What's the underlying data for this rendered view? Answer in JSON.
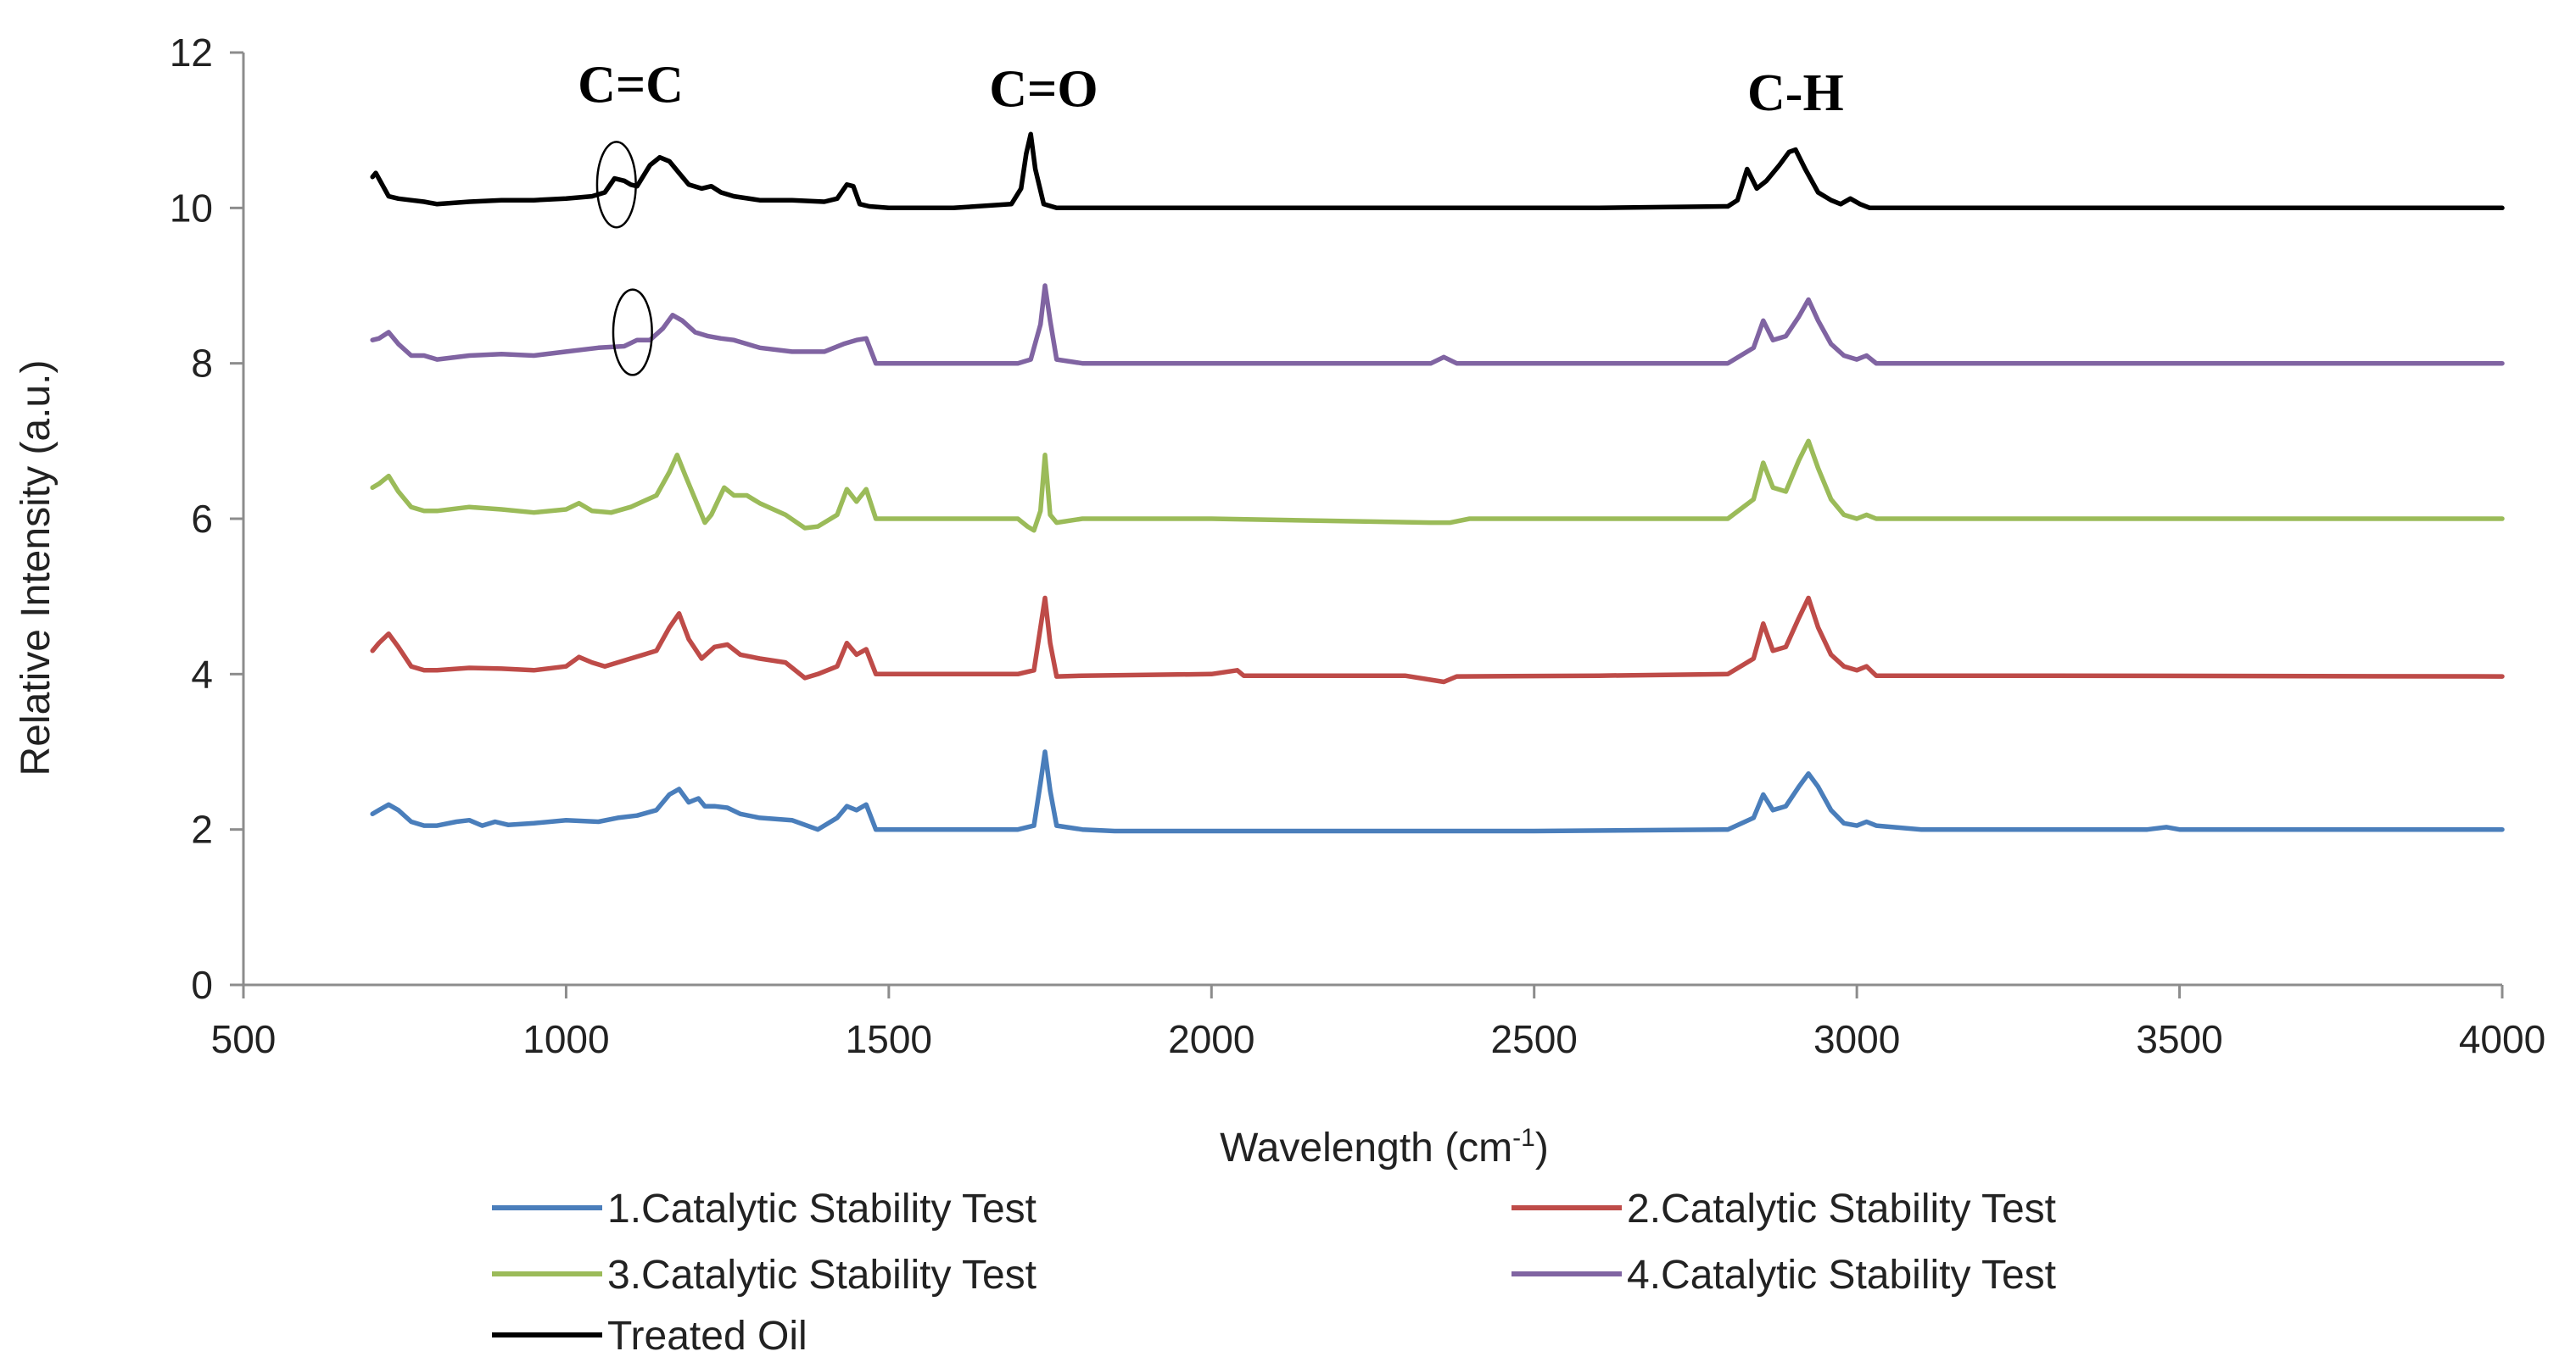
{
  "chart_data": {
    "type": "line",
    "title": "",
    "xlabel": "Wavelength (cm",
    "xlabel_superscript": "-1",
    "xlabel_suffix": ")",
    "ylabel": "Relative Intensity (a.u.)",
    "xlim": [
      500,
      4000
    ],
    "ylim": [
      0,
      12
    ],
    "x_ticks": [
      500,
      1000,
      1500,
      2000,
      2500,
      3000,
      3500,
      4000
    ],
    "y_ticks": [
      0,
      2,
      4,
      6,
      8,
      10,
      12
    ],
    "grid": false,
    "legend_position": "bottom",
    "annotations": [
      {
        "text": "C=C",
        "x": 1100,
        "y": 11.6
      },
      {
        "text": "C=O",
        "x": 1740,
        "y": 11.55
      },
      {
        "text": "C-H",
        "x": 2905,
        "y": 11.5
      }
    ],
    "circles": [
      {
        "x": 1078,
        "y": 10.3,
        "rx": 30,
        "ry": 0.55
      },
      {
        "x": 1103,
        "y": 8.4,
        "rx": 30,
        "ry": 0.55
      }
    ],
    "series": [
      {
        "name": "1.Catalytic Stability Test",
        "color": "#4a7ebb",
        "x": [
          700,
          710,
          725,
          740,
          760,
          780,
          800,
          830,
          850,
          870,
          890,
          910,
          950,
          1000,
          1050,
          1080,
          1110,
          1140,
          1160,
          1175,
          1190,
          1205,
          1215,
          1230,
          1250,
          1270,
          1300,
          1350,
          1390,
          1420,
          1435,
          1450,
          1465,
          1480,
          1500,
          1600,
          1700,
          1725,
          1735,
          1742,
          1750,
          1760,
          1800,
          1850,
          2000,
          2500,
          2800,
          2840,
          2855,
          2870,
          2890,
          2910,
          2925,
          2940,
          2960,
          2980,
          3000,
          3015,
          3030,
          3100,
          3450,
          3480,
          3500,
          4000
        ],
        "y": [
          2.2,
          2.25,
          2.32,
          2.25,
          2.1,
          2.05,
          2.05,
          2.1,
          2.12,
          2.05,
          2.1,
          2.06,
          2.08,
          2.12,
          2.1,
          2.15,
          2.18,
          2.25,
          2.45,
          2.52,
          2.35,
          2.4,
          2.3,
          2.3,
          2.28,
          2.2,
          2.15,
          2.12,
          2.0,
          2.15,
          2.3,
          2.25,
          2.32,
          2.0,
          2.0,
          2.0,
          2.0,
          2.05,
          2.6,
          3.0,
          2.5,
          2.05,
          2.0,
          1.98,
          1.98,
          1.98,
          2.0,
          2.15,
          2.45,
          2.25,
          2.3,
          2.55,
          2.72,
          2.55,
          2.25,
          2.08,
          2.05,
          2.1,
          2.05,
          2.0,
          2.0,
          2.03,
          2.0,
          2.0
        ]
      },
      {
        "name": "2.Catalytic Stability Test",
        "color": "#be4b48",
        "x": [
          700,
          710,
          725,
          740,
          760,
          780,
          800,
          850,
          900,
          950,
          1000,
          1020,
          1040,
          1060,
          1100,
          1140,
          1160,
          1175,
          1190,
          1210,
          1230,
          1250,
          1270,
          1300,
          1340,
          1370,
          1390,
          1420,
          1435,
          1450,
          1465,
          1480,
          1500,
          1600,
          1700,
          1725,
          1735,
          1742,
          1750,
          1760,
          1800,
          2000,
          2040,
          2050,
          2300,
          2360,
          2380,
          2600,
          2800,
          2840,
          2855,
          2870,
          2890,
          2910,
          2925,
          2940,
          2960,
          2980,
          3000,
          3015,
          3030,
          3300,
          4000
        ],
        "y": [
          4.3,
          4.4,
          4.52,
          4.35,
          4.1,
          4.05,
          4.05,
          4.08,
          4.07,
          4.05,
          4.1,
          4.22,
          4.15,
          4.1,
          4.2,
          4.3,
          4.6,
          4.78,
          4.45,
          4.2,
          4.35,
          4.38,
          4.25,
          4.2,
          4.15,
          3.95,
          4.0,
          4.1,
          4.4,
          4.25,
          4.32,
          4.0,
          4.0,
          4.0,
          4.0,
          4.05,
          4.6,
          4.98,
          4.4,
          3.97,
          3.98,
          4.0,
          4.05,
          3.98,
          3.98,
          3.9,
          3.97,
          3.98,
          4.0,
          4.2,
          4.65,
          4.3,
          4.35,
          4.72,
          4.98,
          4.6,
          4.25,
          4.1,
          4.05,
          4.1,
          3.98,
          3.98,
          3.97
        ]
      },
      {
        "name": "3.Catalytic Stability Test",
        "color": "#9bbb59",
        "x": [
          700,
          710,
          725,
          740,
          760,
          780,
          800,
          850,
          900,
          950,
          1000,
          1020,
          1040,
          1070,
          1100,
          1140,
          1160,
          1172,
          1185,
          1200,
          1215,
          1225,
          1245,
          1260,
          1280,
          1300,
          1340,
          1370,
          1390,
          1420,
          1435,
          1450,
          1465,
          1480,
          1500,
          1600,
          1700,
          1715,
          1725,
          1735,
          1742,
          1750,
          1760,
          1800,
          2000,
          2340,
          2370,
          2400,
          2800,
          2840,
          2855,
          2870,
          2890,
          2910,
          2925,
          2940,
          2960,
          2980,
          3000,
          3015,
          3030,
          4000
        ],
        "y": [
          6.4,
          6.45,
          6.55,
          6.35,
          6.15,
          6.1,
          6.1,
          6.15,
          6.12,
          6.08,
          6.12,
          6.2,
          6.1,
          6.08,
          6.15,
          6.3,
          6.6,
          6.82,
          6.55,
          6.25,
          5.95,
          6.05,
          6.4,
          6.3,
          6.3,
          6.2,
          6.05,
          5.88,
          5.9,
          6.05,
          6.38,
          6.22,
          6.38,
          6.0,
          6.0,
          6.0,
          6.0,
          5.9,
          5.85,
          6.1,
          6.82,
          6.05,
          5.95,
          6.0,
          6.0,
          5.95,
          5.95,
          6.0,
          6.0,
          6.25,
          6.72,
          6.4,
          6.35,
          6.75,
          7.0,
          6.65,
          6.25,
          6.05,
          6.0,
          6.05,
          6.0,
          6.0
        ]
      },
      {
        "name": "4.Catalytic Stability Test",
        "color": "#8064a2",
        "x": [
          700,
          710,
          725,
          740,
          760,
          780,
          800,
          850,
          900,
          950,
          1000,
          1050,
          1090,
          1110,
          1130,
          1150,
          1165,
          1180,
          1200,
          1220,
          1240,
          1260,
          1280,
          1300,
          1350,
          1400,
          1430,
          1450,
          1465,
          1480,
          1500,
          1600,
          1700,
          1720,
          1735,
          1742,
          1750,
          1760,
          1800,
          2000,
          2340,
          2360,
          2380,
          2800,
          2840,
          2855,
          2870,
          2890,
          2910,
          2925,
          2940,
          2960,
          2980,
          3000,
          3015,
          3030,
          4000
        ],
        "y": [
          8.3,
          8.32,
          8.4,
          8.25,
          8.1,
          8.1,
          8.05,
          8.1,
          8.12,
          8.1,
          8.15,
          8.2,
          8.22,
          8.3,
          8.3,
          8.45,
          8.62,
          8.55,
          8.4,
          8.35,
          8.32,
          8.3,
          8.25,
          8.2,
          8.15,
          8.15,
          8.25,
          8.3,
          8.32,
          8.0,
          8.0,
          8.0,
          8.0,
          8.05,
          8.5,
          9.0,
          8.55,
          8.05,
          8.0,
          8.0,
          8.0,
          8.08,
          8.0,
          8.0,
          8.2,
          8.55,
          8.3,
          8.35,
          8.6,
          8.82,
          8.55,
          8.25,
          8.1,
          8.05,
          8.1,
          8.0,
          8.0
        ]
      },
      {
        "name": "Treated Oil",
        "color": "#000000",
        "x": [
          700,
          705,
          715,
          725,
          740,
          760,
          780,
          800,
          850,
          900,
          950,
          1000,
          1040,
          1060,
          1075,
          1090,
          1100,
          1110,
          1130,
          1145,
          1160,
          1175,
          1190,
          1210,
          1225,
          1240,
          1260,
          1300,
          1350,
          1400,
          1420,
          1435,
          1445,
          1455,
          1470,
          1500,
          1600,
          1690,
          1705,
          1713,
          1720,
          1727,
          1740,
          1760,
          1800,
          2000,
          2600,
          2800,
          2815,
          2830,
          2845,
          2860,
          2880,
          2895,
          2905,
          2920,
          2940,
          2960,
          2975,
          2990,
          3005,
          3020,
          4000
        ],
        "y": [
          10.4,
          10.45,
          10.3,
          10.15,
          10.12,
          10.1,
          10.08,
          10.05,
          10.08,
          10.1,
          10.1,
          10.12,
          10.15,
          10.2,
          10.38,
          10.35,
          10.3,
          10.28,
          10.55,
          10.65,
          10.6,
          10.45,
          10.3,
          10.25,
          10.28,
          10.2,
          10.15,
          10.1,
          10.1,
          10.08,
          10.12,
          10.3,
          10.28,
          10.05,
          10.02,
          10.0,
          10.0,
          10.05,
          10.25,
          10.7,
          10.95,
          10.5,
          10.05,
          10.0,
          10.0,
          10.0,
          10.0,
          10.02,
          10.1,
          10.5,
          10.25,
          10.35,
          10.55,
          10.72,
          10.75,
          10.5,
          10.2,
          10.1,
          10.05,
          10.12,
          10.05,
          10.0,
          10.0
        ]
      }
    ]
  }
}
